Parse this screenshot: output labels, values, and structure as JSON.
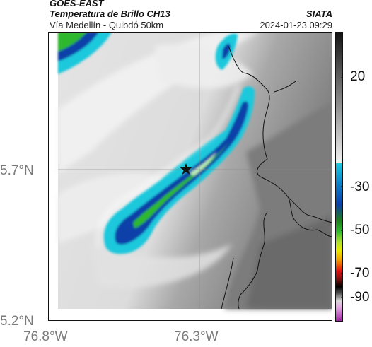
{
  "header": {
    "satellite": "GOES-EAST",
    "product": "Temperatura de Brillo CH13",
    "route": "Vía Medellín - Quibdó 50km",
    "agency": "SIATA",
    "datetime": "2024-01-23 09:29"
  },
  "axes": {
    "lat_labels": [
      "5.7°N",
      "5.2°N"
    ],
    "lon_labels": [
      "76.8°W",
      "76.3°W"
    ]
  },
  "colorbar": {
    "labels": [
      "20",
      "-30",
      "-50",
      "-70",
      "-90"
    ],
    "colors": {
      "warm_top": "#1a1a1a",
      "warm_bottom": "#f2f2f2",
      "cyan": "#1fc8dc",
      "blue": "#0b3fa8",
      "green": "#2fb82f",
      "yellow": "#e8e800",
      "red": "#e01010",
      "black": "#000000",
      "magenta": "#c040c0"
    }
  },
  "map": {
    "marker": "star",
    "background_colors": {
      "cloud_light": "#e9e9e9",
      "cloud_mid": "#d3d3d3",
      "ground_dark": "#6e6e6e"
    }
  }
}
